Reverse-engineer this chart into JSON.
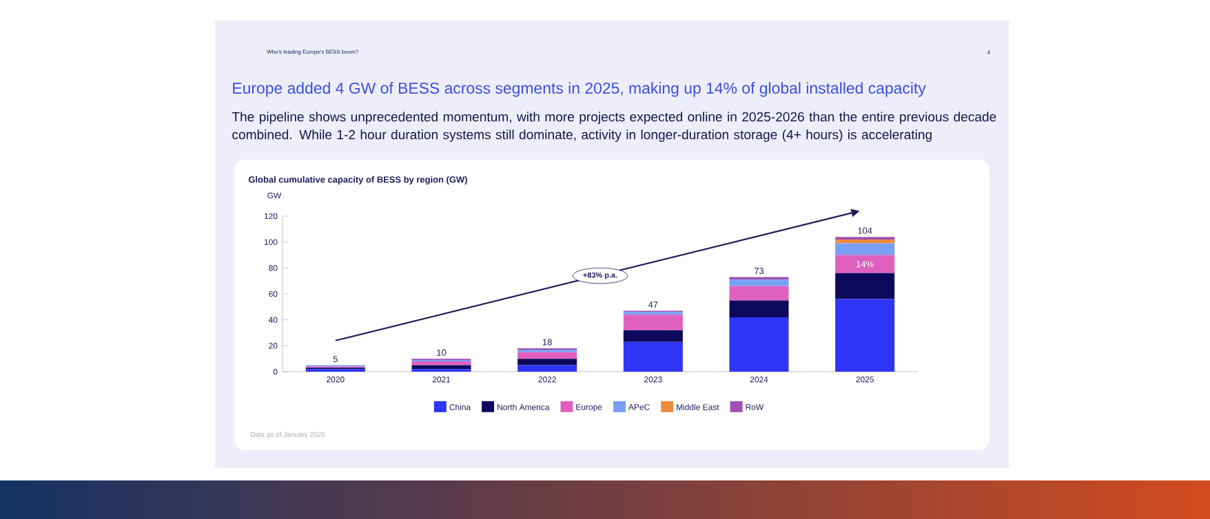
{
  "chart_data": {
    "type": "bar",
    "stacked": true,
    "title": "Global cumulative capacity of BESS by region (GW)",
    "ylabel": "GW",
    "annotations": [
      "Who's leading Europe's BESS boom?",
      "4",
      "Europe added 4 GW of BESS across segments in 2025, making up 14% of global installed capacity",
      "The pipeline shows unprecedented momentum, with more projects expected online in 2025-2026 than the entire previous decade combined. While 1-2 hour duration systems still dominate, activity in longer-duration storage (4+ hours) is accelerating",
      "+83% p.a.",
      "Data as of January 2026"
    ],
    "categories": [
      "2020",
      "2021",
      "2022",
      "2023",
      "2024",
      "2025"
    ],
    "series": [
      {
        "name": "China",
        "color": "#2e35f5",
        "values": [
          2,
          2,
          5,
          23,
          42,
          56
        ]
      },
      {
        "name": "North America",
        "color": "#0d0a5e",
        "values": [
          1,
          3,
          5,
          9,
          13,
          20
        ]
      },
      {
        "name": "Europe",
        "color": "#e060c0",
        "values": [
          1,
          3,
          5,
          12,
          11,
          14
        ],
        "value_labels": [
          null,
          null,
          null,
          null,
          null,
          "14%"
        ]
      },
      {
        "name": "APeC",
        "color": "#7aa0f5",
        "values": [
          1,
          1,
          2,
          2,
          5,
          9
        ]
      },
      {
        "name": "Middle East",
        "color": "#f08a40",
        "values": [
          0,
          0,
          0,
          0,
          0,
          3
        ]
      },
      {
        "name": "RoW",
        "color": "#a050b0",
        "values": [
          0,
          1,
          1,
          1,
          2,
          2
        ]
      }
    ],
    "totals": [
      "5",
      "10",
      "18",
      "47",
      "73",
      "104"
    ],
    "ylim": [
      0,
      120
    ],
    "yticks": [
      0,
      20,
      40,
      60,
      80,
      100,
      120
    ],
    "legend": "bottom",
    "grid": false
  }
}
